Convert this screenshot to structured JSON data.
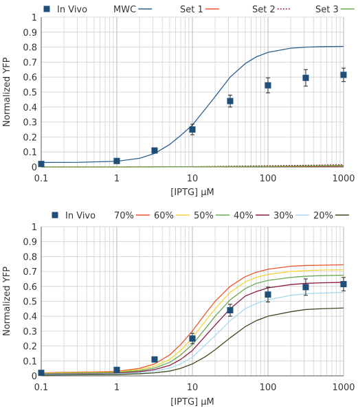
{
  "chart_data": [
    {
      "type": "line",
      "xlabel": "[IPTG] μM",
      "ylabel": "Normalized YFP",
      "x_scale": "log",
      "xlim": [
        0.1,
        1000
      ],
      "ylim": [
        0,
        1
      ],
      "x_ticks": [
        "0.1",
        "1",
        "10",
        "100",
        "1000"
      ],
      "y_ticks": [
        "0",
        "0.1",
        "0.2",
        "0.3",
        "0.4",
        "0.5",
        "0.6",
        "0.7",
        "0.8",
        "0.9",
        "1"
      ],
      "grid": true,
      "legend_position": "top",
      "legend": [
        "In Vivo",
        "MWC",
        "Set 1",
        "Set 2",
        "Set 3"
      ],
      "series": [
        {
          "name": "In Vivo",
          "kind": "scatter",
          "color": "#1f4e79",
          "x": [
            0.1,
            1,
            3.16,
            10,
            31.6,
            100,
            316,
            1000
          ],
          "y": [
            0.02,
            0.04,
            0.11,
            0.25,
            0.44,
            0.545,
            0.595,
            0.615
          ],
          "err": [
            0.005,
            0.008,
            0.012,
            0.035,
            0.04,
            0.05,
            0.055,
            0.045
          ]
        },
        {
          "name": "MWC",
          "kind": "line",
          "color": "#2d5f91",
          "dash": "",
          "x": [
            0.1,
            0.316,
            1,
            2,
            3.16,
            5,
            7,
            10,
            15,
            20,
            31.6,
            50,
            70,
            100,
            200,
            316,
            500,
            1000
          ],
          "y": [
            0.03,
            0.031,
            0.038,
            0.058,
            0.09,
            0.15,
            0.21,
            0.28,
            0.39,
            0.47,
            0.6,
            0.69,
            0.735,
            0.765,
            0.793,
            0.8,
            0.803,
            0.805
          ]
        },
        {
          "name": "Set 1",
          "kind": "line",
          "color": "#e8542a",
          "dash": "",
          "x": [
            0.1,
            1,
            10,
            100,
            1000
          ],
          "y": [
            0.0,
            0.0,
            0.001,
            0.003,
            0.006
          ]
        },
        {
          "name": "Set 2",
          "kind": "line",
          "color": "#9b1b30",
          "dash": "2,2",
          "x": [
            0.1,
            1,
            10,
            100,
            1000
          ],
          "y": [
            0.0,
            0.0,
            0.002,
            0.008,
            0.015
          ]
        },
        {
          "name": "Set 3",
          "kind": "line",
          "color": "#6aa84f",
          "dash": "",
          "x": [
            0.1,
            1,
            10,
            100,
            1000
          ],
          "y": [
            0.0,
            0.0,
            0.001,
            0.004,
            0.01
          ]
        }
      ]
    },
    {
      "type": "line",
      "xlabel": "[IPTG] μM",
      "ylabel": "Normalized YFP",
      "x_scale": "log",
      "xlim": [
        0.1,
        1000
      ],
      "ylim": [
        0,
        1
      ],
      "x_ticks": [
        "0.1",
        "1",
        "10",
        "100",
        "1000"
      ],
      "y_ticks": [
        "0",
        "0.1",
        "0.2",
        "0.3",
        "0.4",
        "0.5",
        "0.6",
        "0.7",
        "0.8",
        "0.9",
        "1"
      ],
      "grid": true,
      "legend_position": "top",
      "legend": [
        "In Vivo",
        "70%",
        "60%",
        "50%",
        "40%",
        "30%",
        "20%"
      ],
      "series": [
        {
          "name": "In Vivo",
          "kind": "scatter",
          "color": "#1f4e79",
          "x": [
            0.1,
            1,
            3.16,
            10,
            31.6,
            100,
            316,
            1000
          ],
          "y": [
            0.02,
            0.04,
            0.11,
            0.25,
            0.44,
            0.545,
            0.595,
            0.615
          ],
          "err": [
            0.005,
            0.008,
            0.012,
            0.035,
            0.04,
            0.05,
            0.055,
            0.045
          ]
        },
        {
          "name": "70%",
          "kind": "line",
          "color": "#e8542a",
          "dash": "",
          "x": [
            0.1,
            1,
            2,
            3.16,
            5,
            7,
            10,
            15,
            20,
            31.6,
            50,
            70,
            100,
            200,
            316,
            500,
            1000
          ],
          "y": [
            0.02,
            0.03,
            0.05,
            0.08,
            0.14,
            0.21,
            0.3,
            0.42,
            0.5,
            0.6,
            0.665,
            0.695,
            0.715,
            0.735,
            0.74,
            0.742,
            0.745
          ]
        },
        {
          "name": "60%",
          "kind": "line",
          "color": "#f2d43a",
          "dash": "",
          "x": [
            0.1,
            1,
            2,
            3.16,
            5,
            7,
            10,
            15,
            20,
            31.6,
            50,
            70,
            100,
            200,
            316,
            500,
            1000
          ],
          "y": [
            0.018,
            0.026,
            0.042,
            0.065,
            0.11,
            0.17,
            0.255,
            0.37,
            0.45,
            0.56,
            0.63,
            0.66,
            0.68,
            0.7,
            0.706,
            0.709,
            0.712
          ]
        },
        {
          "name": "50%",
          "kind": "line",
          "color": "#6aa84f",
          "dash": "",
          "x": [
            0.1,
            1,
            2,
            3.16,
            5,
            7,
            10,
            15,
            20,
            31.6,
            50,
            70,
            100,
            200,
            316,
            500,
            1000
          ],
          "y": [
            0.015,
            0.022,
            0.035,
            0.053,
            0.09,
            0.14,
            0.21,
            0.32,
            0.4,
            0.51,
            0.585,
            0.62,
            0.64,
            0.66,
            0.668,
            0.672,
            0.675
          ]
        },
        {
          "name": "40%",
          "kind": "line",
          "color": "#8b1a3e",
          "dash": "",
          "x": [
            0.1,
            1,
            2,
            3.16,
            5,
            7,
            10,
            15,
            20,
            31.6,
            50,
            70,
            100,
            200,
            316,
            500,
            1000
          ],
          "y": [
            0.012,
            0.018,
            0.028,
            0.042,
            0.07,
            0.11,
            0.17,
            0.27,
            0.34,
            0.45,
            0.535,
            0.565,
            0.59,
            0.612,
            0.62,
            0.624,
            0.627
          ]
        },
        {
          "name": "30%",
          "kind": "line",
          "color": "#a8d8f0",
          "dash": "",
          "x": [
            0.1,
            1,
            2,
            3.16,
            5,
            7,
            10,
            15,
            20,
            31.6,
            50,
            70,
            100,
            200,
            316,
            500,
            1000
          ],
          "y": [
            0.01,
            0.014,
            0.022,
            0.032,
            0.052,
            0.08,
            0.125,
            0.21,
            0.27,
            0.37,
            0.45,
            0.485,
            0.51,
            0.54,
            0.55,
            0.555,
            0.56
          ]
        },
        {
          "name": "20%",
          "kind": "line",
          "color": "#3d4a1f",
          "dash": "",
          "x": [
            0.1,
            1,
            2,
            3.16,
            5,
            7,
            10,
            15,
            20,
            31.6,
            50,
            70,
            100,
            200,
            316,
            500,
            1000
          ],
          "y": [
            0.006,
            0.009,
            0.014,
            0.02,
            0.032,
            0.05,
            0.08,
            0.13,
            0.175,
            0.255,
            0.33,
            0.37,
            0.4,
            0.43,
            0.445,
            0.45,
            0.455
          ]
        }
      ]
    }
  ]
}
